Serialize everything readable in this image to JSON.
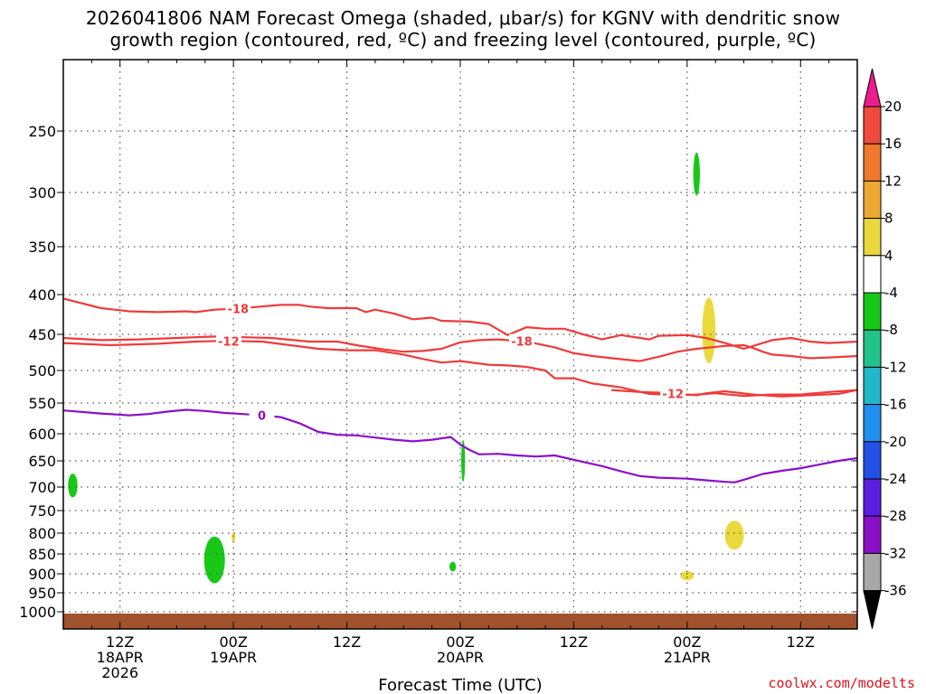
{
  "chart_data": {
    "type": "contour",
    "title_line1": "2026041806 NAM Forecast Omega (shaded, μbar/s) for KGNV with dendritic snow",
    "title_line2": "growth region (contoured, red, ºC) and freezing level (contoured, purple, ºC)",
    "xlabel": "Forecast Time (UTC)",
    "credit": "coolwx.com/modelts",
    "x_range_hours": [
      0,
      84
    ],
    "y_range_hpa": [
      1030,
      205
    ],
    "y_ticks": [
      {
        "v": 250,
        "label": "250"
      },
      {
        "v": 300,
        "label": "300"
      },
      {
        "v": 350,
        "label": "350"
      },
      {
        "v": 400,
        "label": "400"
      },
      {
        "v": 450,
        "label": "450"
      },
      {
        "v": 500,
        "label": "500"
      },
      {
        "v": 550,
        "label": "550"
      },
      {
        "v": 600,
        "label": "600"
      },
      {
        "v": 650,
        "label": "650"
      },
      {
        "v": 700,
        "label": "700"
      },
      {
        "v": 750,
        "label": "750"
      },
      {
        "v": 800,
        "label": "800"
      },
      {
        "v": 850,
        "label": "850"
      },
      {
        "v": 900,
        "label": "900"
      },
      {
        "v": 950,
        "label": "950"
      },
      {
        "v": 1000,
        "label": "1000"
      }
    ],
    "x_ticks": [
      {
        "h": 6,
        "lines": [
          "12Z",
          "18APR",
          "2026"
        ]
      },
      {
        "h": 18,
        "lines": [
          "00Z",
          "19APR"
        ]
      },
      {
        "h": 30,
        "lines": [
          "12Z"
        ]
      },
      {
        "h": 42,
        "lines": [
          "00Z",
          "20APR"
        ]
      },
      {
        "h": 54,
        "lines": [
          "12Z"
        ]
      },
      {
        "h": 66,
        "lines": [
          "00Z",
          "21APR"
        ]
      },
      {
        "h": 78,
        "lines": [
          "12Z"
        ]
      }
    ],
    "colorbar": {
      "levels": [
        "20",
        "16",
        "12",
        "8",
        "4",
        "-4",
        "-8",
        "-12",
        "-16",
        "-20",
        "-24",
        "-28",
        "-32",
        "-36"
      ],
      "colors": [
        "#ee1c8e",
        "#f04a3c",
        "#f0782a",
        "#eca833",
        "#ead93c",
        "#ffffff",
        "#17c817",
        "#22c38a",
        "#20b8c8",
        "#1f8ff0",
        "#2350e6",
        "#5a1ee0",
        "#8a10c8",
        "#a8a8a8",
        "#000000"
      ]
    },
    "series": [
      {
        "name": "minus18_upper",
        "color": "#ee3b3b",
        "label": "-18",
        "label_h": 18.5,
        "points": [
          [
            0,
            405
          ],
          [
            4,
            417
          ],
          [
            7,
            421
          ],
          [
            10,
            422
          ],
          [
            13,
            421
          ],
          [
            14,
            422
          ],
          [
            16,
            419
          ],
          [
            18,
            418
          ],
          [
            21,
            415
          ],
          [
            23,
            413
          ],
          [
            25,
            413
          ],
          [
            26,
            415
          ],
          [
            28,
            417
          ],
          [
            31,
            417
          ],
          [
            32,
            422
          ],
          [
            33,
            419
          ],
          [
            35,
            424
          ],
          [
            37,
            431
          ],
          [
            39,
            429
          ],
          [
            40,
            433
          ],
          [
            43,
            434
          ],
          [
            45,
            437
          ],
          [
            47,
            451
          ],
          [
            49,
            441
          ],
          [
            51,
            443
          ],
          [
            53,
            443
          ],
          [
            55,
            450
          ],
          [
            57,
            457
          ],
          [
            59,
            451
          ],
          [
            61,
            455
          ],
          [
            62,
            457
          ],
          [
            63,
            452
          ],
          [
            66,
            451
          ],
          [
            68,
            455
          ],
          [
            70,
            462
          ],
          [
            72,
            470
          ],
          [
            75,
            458
          ],
          [
            77,
            455
          ],
          [
            79,
            460
          ],
          [
            81,
            462
          ],
          [
            84,
            460
          ]
        ]
      },
      {
        "name": "minus18_mid",
        "color": "#ee3b3b",
        "label": "-18",
        "label_h": 48.5,
        "points": [
          [
            0,
            455
          ],
          [
            4,
            458
          ],
          [
            8,
            457
          ],
          [
            12,
            455
          ],
          [
            16,
            453
          ],
          [
            19,
            454
          ],
          [
            22,
            455
          ],
          [
            26,
            460
          ],
          [
            29,
            460
          ],
          [
            31,
            465
          ],
          [
            34,
            471
          ],
          [
            36,
            474
          ],
          [
            38,
            473
          ],
          [
            40,
            470
          ],
          [
            42,
            461
          ],
          [
            44,
            458
          ],
          [
            46,
            457
          ],
          [
            49,
            460
          ],
          [
            52,
            468
          ],
          [
            54,
            476
          ],
          [
            56,
            480
          ],
          [
            58,
            483
          ],
          [
            61,
            487
          ],
          [
            63,
            481
          ],
          [
            65,
            474
          ],
          [
            67,
            470
          ],
          [
            70,
            466
          ],
          [
            72,
            465
          ],
          [
            73,
            469
          ],
          [
            74,
            474
          ],
          [
            75,
            478
          ],
          [
            77,
            480
          ],
          [
            79,
            483
          ],
          [
            81,
            482
          ],
          [
            84,
            480
          ]
        ]
      },
      {
        "name": "minus12",
        "color": "#ee3b3b",
        "label": "-12",
        "label_h": 17.5,
        "points": [
          [
            0,
            462
          ],
          [
            5,
            465
          ],
          [
            10,
            463
          ],
          [
            14,
            460
          ],
          [
            17,
            459
          ],
          [
            21,
            460
          ],
          [
            24,
            465
          ],
          [
            27,
            470
          ],
          [
            30,
            472
          ],
          [
            33,
            472
          ],
          [
            36,
            478
          ],
          [
            38,
            484
          ],
          [
            40,
            489
          ],
          [
            42,
            487
          ],
          [
            45,
            492
          ],
          [
            47,
            493
          ],
          [
            49,
            495
          ],
          [
            51,
            500
          ],
          [
            52,
            512
          ],
          [
            54,
            512
          ],
          [
            56,
            520
          ],
          [
            59,
            526
          ],
          [
            62,
            536
          ],
          [
            65,
            538
          ],
          [
            67,
            537
          ],
          [
            69,
            535
          ],
          [
            72,
            539
          ],
          [
            75,
            537
          ],
          [
            78,
            537
          ],
          [
            81,
            533
          ],
          [
            84,
            530
          ]
        ]
      },
      {
        "name": "minus12_lower",
        "color": "#ee3b3b",
        "label": "-12",
        "label_h": 64.5,
        "points": [
          [
            58,
            530
          ],
          [
            61,
            533
          ],
          [
            63,
            534
          ],
          [
            65,
            536
          ],
          [
            67,
            538
          ],
          [
            68,
            535
          ],
          [
            70,
            532
          ],
          [
            73,
            537
          ],
          [
            76,
            540
          ],
          [
            79,
            538
          ],
          [
            82,
            536
          ],
          [
            84,
            530
          ]
        ]
      },
      {
        "name": "freezing_0C",
        "color": "#8a10c8",
        "label": "0",
        "label_h": 21,
        "points": [
          [
            0,
            562
          ],
          [
            4,
            567
          ],
          [
            7,
            570
          ],
          [
            9,
            568
          ],
          [
            11,
            564
          ],
          [
            13,
            561
          ],
          [
            15,
            563
          ],
          [
            17,
            566
          ],
          [
            19,
            568
          ],
          [
            21,
            570
          ],
          [
            23,
            573
          ],
          [
            25,
            583
          ],
          [
            27,
            597
          ],
          [
            29,
            602
          ],
          [
            31,
            603
          ],
          [
            33,
            607
          ],
          [
            35,
            611
          ],
          [
            37,
            614
          ],
          [
            39,
            611
          ],
          [
            41,
            606
          ],
          [
            42,
            620
          ],
          [
            43,
            630
          ],
          [
            44,
            638
          ],
          [
            46,
            637
          ],
          [
            48,
            640
          ],
          [
            50,
            642
          ],
          [
            52,
            640
          ],
          [
            55,
            652
          ],
          [
            57,
            660
          ],
          [
            59,
            670
          ],
          [
            61,
            679
          ],
          [
            63,
            682
          ],
          [
            66,
            684
          ],
          [
            68,
            687
          ],
          [
            70,
            690
          ],
          [
            71,
            691
          ],
          [
            72,
            686
          ],
          [
            74,
            675
          ],
          [
            76,
            669
          ],
          [
            78,
            664
          ],
          [
            80,
            657
          ],
          [
            82,
            650
          ],
          [
            84,
            645
          ]
        ]
      }
    ],
    "omega_blobs": [
      {
        "color": "#17c817",
        "h": 1.0,
        "p": 697,
        "rh": 0.5,
        "rp": 25
      },
      {
        "color": "#17c817",
        "h": 16.0,
        "p": 865,
        "rh": 1.1,
        "rp": 60
      },
      {
        "color": "#17c817",
        "h": 42.3,
        "p": 650,
        "rh": 0.2,
        "rp": 40
      },
      {
        "color": "#17c817",
        "h": 41.2,
        "p": 882,
        "rh": 0.35,
        "rp": 12
      },
      {
        "color": "#17c817",
        "h": 67.0,
        "p": 285,
        "rh": 0.35,
        "rp": 18
      },
      {
        "color": "#ead93c",
        "h": 18.0,
        "p": 810,
        "rh": 0.2,
        "rp": 12
      },
      {
        "color": "#ead93c",
        "h": 68.3,
        "p": 445,
        "rh": 0.7,
        "rp": 45
      },
      {
        "color": "#ead93c",
        "h": 71.0,
        "p": 805,
        "rh": 1.0,
        "rp": 35
      },
      {
        "color": "#ead93c",
        "h": 66.0,
        "p": 905,
        "rh": 0.7,
        "rp": 12
      }
    ]
  }
}
